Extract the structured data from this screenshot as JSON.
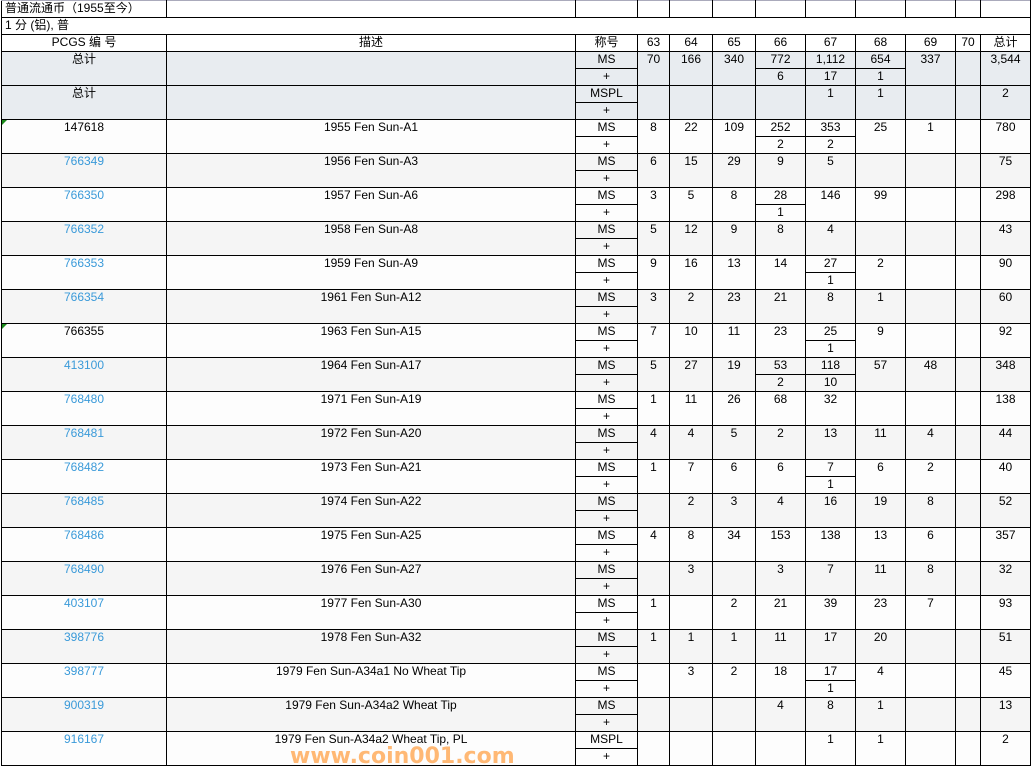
{
  "title_row": "普通流通币（1955至今）",
  "subtitle_row": "1 分 (铝), 普",
  "headers": {
    "pcgs": "PCGS 编 号",
    "desc": "描述",
    "designation": "称号",
    "grades": [
      "63",
      "64",
      "65",
      "66",
      "67",
      "68",
      "69",
      "70"
    ],
    "total": "总计"
  },
  "totals": {
    "label": "总计",
    "ms": {
      "des": "MS",
      "plus_des": "+",
      "values": [
        "70",
        "166",
        "340",
        "772",
        "1,112",
        "654",
        "337",
        "",
        "3,544"
      ],
      "plus": [
        "",
        "",
        "",
        "6",
        "17",
        "1",
        "",
        "",
        ""
      ]
    },
    "mspl": {
      "des": "MSPL",
      "plus_des": "+",
      "values": [
        "",
        "",
        "",
        "",
        "1",
        "1",
        "",
        "",
        "2"
      ],
      "plus": [
        "",
        "",
        "",
        "",
        "",
        "",
        "",
        "",
        ""
      ]
    }
  },
  "rows": [
    {
      "id": "147618",
      "link": false,
      "mark": true,
      "desc": "1955 Fen Sun-A1",
      "des": "MS",
      "values": [
        "8",
        "22",
        "109",
        "252",
        "353",
        "25",
        "1",
        "",
        "780"
      ],
      "plus": [
        "",
        "",
        "",
        "2",
        "2",
        "",
        "",
        "",
        ""
      ]
    },
    {
      "id": "766349",
      "link": true,
      "desc": "1956 Fen Sun-A3",
      "des": "MS",
      "values": [
        "6",
        "15",
        "29",
        "9",
        "5",
        "",
        "",
        "",
        "75"
      ],
      "plus": [
        "",
        "",
        "",
        "",
        "",
        "",
        "",
        "",
        ""
      ]
    },
    {
      "id": "766350",
      "link": true,
      "desc": "1957 Fen Sun-A6",
      "des": "MS",
      "values": [
        "3",
        "5",
        "8",
        "28",
        "146",
        "99",
        "",
        "",
        "298"
      ],
      "plus": [
        "",
        "",
        "",
        "1",
        "",
        "",
        "",
        "",
        ""
      ]
    },
    {
      "id": "766352",
      "link": true,
      "desc": "1958 Fen Sun-A8",
      "des": "MS",
      "values": [
        "5",
        "12",
        "9",
        "8",
        "4",
        "",
        "",
        "",
        "43"
      ],
      "plus": [
        "",
        "",
        "",
        "",
        "",
        "",
        "",
        "",
        ""
      ]
    },
    {
      "id": "766353",
      "link": true,
      "desc": "1959 Fen Sun-A9",
      "des": "MS",
      "values": [
        "9",
        "16",
        "13",
        "14",
        "27",
        "2",
        "",
        "",
        "90"
      ],
      "plus": [
        "",
        "",
        "",
        "",
        "1",
        "",
        "",
        "",
        ""
      ]
    },
    {
      "id": "766354",
      "link": true,
      "desc": "1961 Fen Sun-A12",
      "des": "MS",
      "values": [
        "3",
        "2",
        "23",
        "21",
        "8",
        "1",
        "",
        "",
        "60"
      ],
      "plus": [
        "",
        "",
        "",
        "",
        "",
        "",
        "",
        "",
        ""
      ]
    },
    {
      "id": "766355",
      "link": false,
      "mark": true,
      "desc": "1963 Fen Sun-A15",
      "des": "MS",
      "values": [
        "7",
        "10",
        "11",
        "23",
        "25",
        "9",
        "",
        "",
        "92"
      ],
      "plus": [
        "",
        "",
        "",
        "",
        "1",
        "",
        "",
        "",
        ""
      ]
    },
    {
      "id": "413100",
      "link": true,
      "desc": "1964 Fen Sun-A17",
      "des": "MS",
      "values": [
        "5",
        "27",
        "19",
        "53",
        "118",
        "57",
        "48",
        "",
        "348"
      ],
      "plus": [
        "",
        "",
        "",
        "2",
        "10",
        "",
        "",
        "",
        ""
      ]
    },
    {
      "id": "768480",
      "link": true,
      "desc": "1971 Fen Sun-A19",
      "des": "MS",
      "values": [
        "1",
        "11",
        "26",
        "68",
        "32",
        "",
        "",
        "",
        "138"
      ],
      "plus": [
        "",
        "",
        "",
        "",
        "",
        "",
        "",
        "",
        ""
      ]
    },
    {
      "id": "768481",
      "link": true,
      "desc": "1972 Fen Sun-A20",
      "des": "MS",
      "values": [
        "4",
        "4",
        "5",
        "2",
        "13",
        "11",
        "4",
        "",
        "44"
      ],
      "plus": [
        "",
        "",
        "",
        "",
        "",
        "",
        "",
        "",
        ""
      ]
    },
    {
      "id": "768482",
      "link": true,
      "desc": "1973 Fen Sun-A21",
      "des": "MS",
      "values": [
        "1",
        "7",
        "6",
        "6",
        "7",
        "6",
        "2",
        "",
        "40"
      ],
      "plus": [
        "",
        "",
        "",
        "",
        "1",
        "",
        "",
        "",
        ""
      ]
    },
    {
      "id": "768485",
      "link": true,
      "desc": "1974 Fen Sun-A22",
      "des": "MS",
      "values": [
        "",
        "2",
        "3",
        "4",
        "16",
        "19",
        "8",
        "",
        "52"
      ],
      "plus": [
        "",
        "",
        "",
        "",
        "",
        "",
        "",
        "",
        ""
      ]
    },
    {
      "id": "768486",
      "link": true,
      "desc": "1975 Fen Sun-A25",
      "des": "MS",
      "values": [
        "4",
        "8",
        "34",
        "153",
        "138",
        "13",
        "6",
        "",
        "357"
      ],
      "plus": [
        "",
        "",
        "",
        "",
        "",
        "",
        "",
        "",
        ""
      ]
    },
    {
      "id": "768490",
      "link": true,
      "desc": "1976 Fen Sun-A27",
      "des": "MS",
      "values": [
        "",
        "3",
        "",
        "3",
        "7",
        "11",
        "8",
        "",
        "32"
      ],
      "plus": [
        "",
        "",
        "",
        "",
        "",
        "",
        "",
        "",
        ""
      ]
    },
    {
      "id": "403107",
      "link": true,
      "desc": "1977 Fen Sun-A30",
      "des": "MS",
      "values": [
        "1",
        "",
        "2",
        "21",
        "39",
        "23",
        "7",
        "",
        "93"
      ],
      "plus": [
        "",
        "",
        "",
        "",
        "",
        "",
        "",
        "",
        ""
      ]
    },
    {
      "id": "398776",
      "link": true,
      "desc": "1978 Fen Sun-A32",
      "des": "MS",
      "values": [
        "1",
        "1",
        "1",
        "11",
        "17",
        "20",
        "",
        "",
        "51"
      ],
      "plus": [
        "",
        "",
        "",
        "",
        "",
        "",
        "",
        "",
        ""
      ]
    },
    {
      "id": "398777",
      "link": true,
      "desc": "1979 Fen Sun-A34a1 No Wheat Tip",
      "des": "MS",
      "values": [
        "",
        "3",
        "2",
        "18",
        "17",
        "4",
        "",
        "",
        "45"
      ],
      "plus": [
        "",
        "",
        "",
        "",
        "1",
        "",
        "",
        "",
        ""
      ]
    },
    {
      "id": "900319",
      "link": true,
      "desc": "1979 Fen Sun-A34a2 Wheat Tip",
      "des": "MS",
      "values": [
        "",
        "",
        "",
        "4",
        "8",
        "1",
        "",
        "",
        "13"
      ],
      "plus": [
        "",
        "",
        "",
        "",
        "",
        "",
        "",
        "",
        ""
      ]
    },
    {
      "id": "916167",
      "link": true,
      "desc": "1979 Fen Sun-A34a2 Wheat Tip, PL",
      "des": "MSPL",
      "values": [
        "",
        "",
        "",
        "",
        "1",
        "1",
        "",
        "",
        "2"
      ],
      "plus": [
        "",
        "",
        "",
        "",
        "",
        "",
        "",
        "",
        ""
      ]
    }
  ],
  "plus_label": "+",
  "watermark": "www.coin001.com",
  "colors": {
    "link": "#3a9ad9",
    "total_bg": "#e8ecf0",
    "watermark": "#ffa046"
  }
}
